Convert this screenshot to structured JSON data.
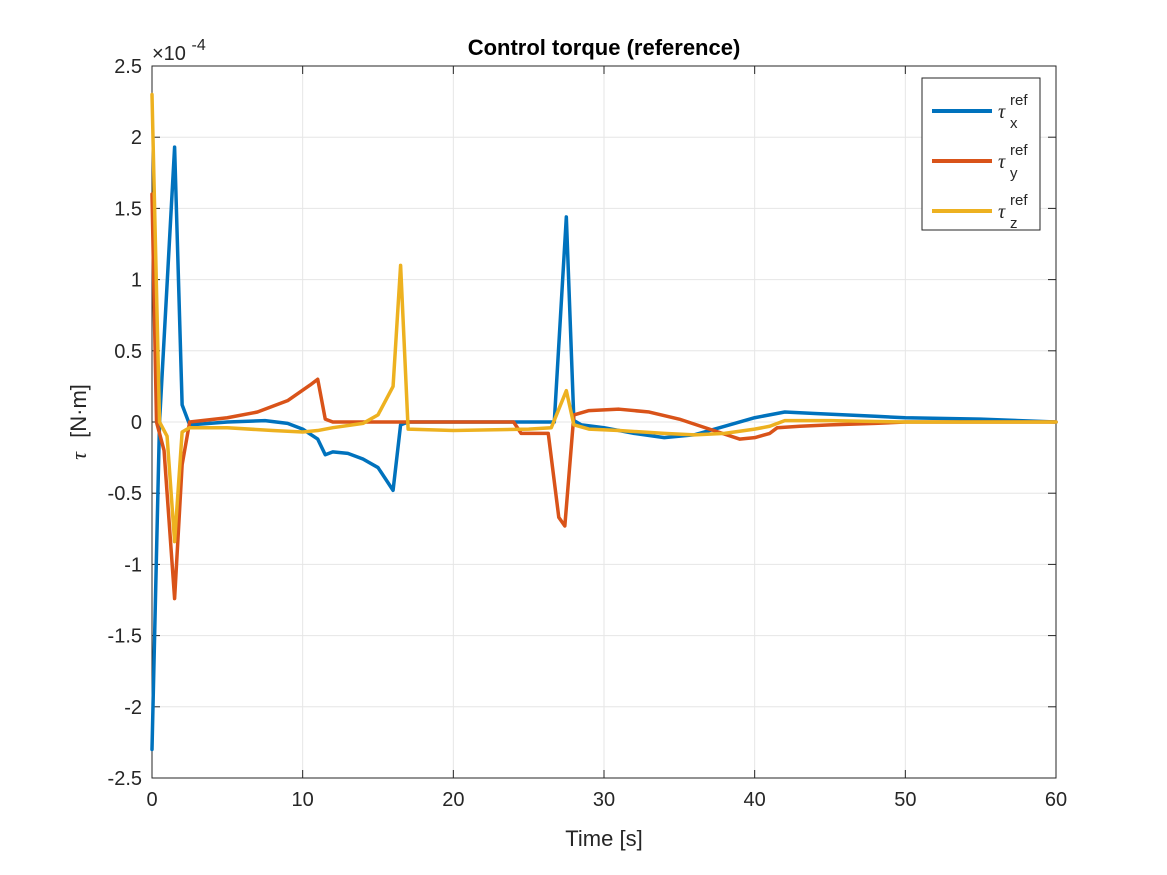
{
  "chart_data": {
    "type": "line",
    "title": "Control torque (reference)",
    "xlabel": "Time [s]",
    "ylabel_symbol": "τ",
    "ylabel_unit": "[N·m]",
    "y_exponent_label": "×10",
    "y_exponent": "-4",
    "xlim": [
      0,
      60
    ],
    "ylim": [
      -2.5,
      2.5
    ],
    "y_scale_factor": 0.0001,
    "grid": true,
    "legend_position": "top-right",
    "x_ticks": [
      "0",
      "10",
      "20",
      "30",
      "40",
      "50",
      "60"
    ],
    "y_ticks": [
      "-2.5",
      "-2",
      "-1.5",
      "-1",
      "-0.5",
      "0",
      "0.5",
      "1",
      "1.5",
      "2",
      "2.5"
    ],
    "series": [
      {
        "name": "τ_x^ref",
        "symbol": "τ",
        "subscript": "x",
        "superscript": "ref",
        "color": "#0072BD",
        "points": [
          [
            0,
            -2.3
          ],
          [
            0.5,
            0
          ],
          [
            1.5,
            1.93
          ],
          [
            2,
            0.12
          ],
          [
            2.5,
            -0.02
          ],
          [
            5,
            0
          ],
          [
            7.5,
            0.01
          ],
          [
            9,
            -0.01
          ],
          [
            10,
            -0.05
          ],
          [
            11,
            -0.12
          ],
          [
            11.5,
            -0.23
          ],
          [
            12,
            -0.21
          ],
          [
            13,
            -0.22
          ],
          [
            14,
            -0.26
          ],
          [
            15,
            -0.32
          ],
          [
            16,
            -0.48
          ],
          [
            16.5,
            -0.02
          ],
          [
            17,
            0
          ],
          [
            20,
            0
          ],
          [
            26,
            0
          ],
          [
            26.7,
            0
          ],
          [
            27.5,
            1.44
          ],
          [
            28,
            0.01
          ],
          [
            28.5,
            -0.02
          ],
          [
            30,
            -0.04
          ],
          [
            32,
            -0.08
          ],
          [
            34,
            -0.11
          ],
          [
            36,
            -0.09
          ],
          [
            38,
            -0.03
          ],
          [
            40,
            0.03
          ],
          [
            42,
            0.07
          ],
          [
            44,
            0.06
          ],
          [
            46,
            0.05
          ],
          [
            48,
            0.04
          ],
          [
            50,
            0.03
          ],
          [
            55,
            0.02
          ],
          [
            60,
            0
          ]
        ]
      },
      {
        "name": "τ_y^ref",
        "symbol": "τ",
        "subscript": "y",
        "superscript": "ref",
        "color": "#D95319",
        "points": [
          [
            0,
            1.6
          ],
          [
            0.3,
            0
          ],
          [
            0.8,
            -0.2
          ],
          [
            1.5,
            -1.24
          ],
          [
            2,
            -0.3
          ],
          [
            2.5,
            0
          ],
          [
            5,
            0.03
          ],
          [
            7,
            0.07
          ],
          [
            9,
            0.15
          ],
          [
            10.5,
            0.26
          ],
          [
            11,
            0.3
          ],
          [
            11.5,
            0.02
          ],
          [
            12,
            0
          ],
          [
            20,
            0
          ],
          [
            24,
            0
          ],
          [
            24.5,
            -0.08
          ],
          [
            26.3,
            -0.08
          ],
          [
            27,
            -0.67
          ],
          [
            27.4,
            -0.73
          ],
          [
            28,
            0.05
          ],
          [
            29,
            0.08
          ],
          [
            31,
            0.09
          ],
          [
            33,
            0.07
          ],
          [
            35,
            0.02
          ],
          [
            37,
            -0.05
          ],
          [
            39,
            -0.12
          ],
          [
            40,
            -0.11
          ],
          [
            41,
            -0.08
          ],
          [
            41.5,
            -0.04
          ],
          [
            43,
            -0.03
          ],
          [
            45,
            -0.02
          ],
          [
            48,
            -0.01
          ],
          [
            50,
            0
          ],
          [
            60,
            0
          ]
        ]
      },
      {
        "name": "τ_z^ref",
        "symbol": "τ",
        "subscript": "z",
        "superscript": "ref",
        "color": "#EDB120",
        "points": [
          [
            0,
            2.3
          ],
          [
            0.5,
            0
          ],
          [
            1,
            -0.1
          ],
          [
            1.5,
            -0.84
          ],
          [
            2,
            -0.07
          ],
          [
            2.5,
            -0.04
          ],
          [
            5,
            -0.04
          ],
          [
            8,
            -0.06
          ],
          [
            10,
            -0.07
          ],
          [
            11,
            -0.06
          ],
          [
            12,
            -0.04
          ],
          [
            14,
            -0.01
          ],
          [
            15,
            0.05
          ],
          [
            16,
            0.25
          ],
          [
            16.5,
            1.1
          ],
          [
            17,
            -0.05
          ],
          [
            20,
            -0.06
          ],
          [
            25,
            -0.05
          ],
          [
            26.5,
            -0.04
          ],
          [
            27.5,
            0.22
          ],
          [
            28,
            -0.02
          ],
          [
            29,
            -0.05
          ],
          [
            31,
            -0.06
          ],
          [
            34,
            -0.08
          ],
          [
            36,
            -0.09
          ],
          [
            38,
            -0.08
          ],
          [
            40,
            -0.05
          ],
          [
            41,
            -0.03
          ],
          [
            42,
            0.01
          ],
          [
            45,
            0.01
          ],
          [
            50,
            0
          ],
          [
            60,
            0
          ]
        ]
      }
    ]
  }
}
